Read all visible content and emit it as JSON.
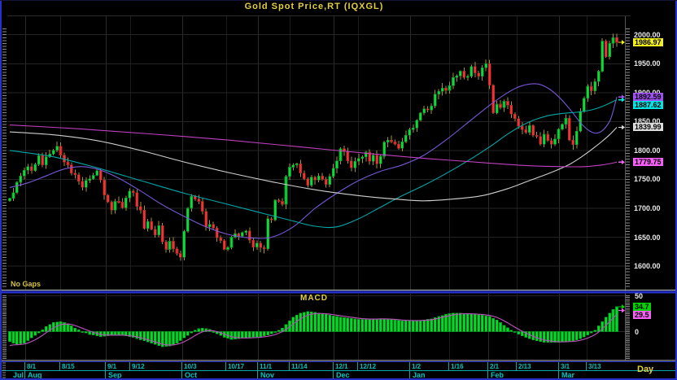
{
  "window": {
    "title": "Gold Spot Price,RT (IQXGL)",
    "period_label": "Day",
    "note": "No Gaps"
  },
  "colors": {
    "background": "#000000",
    "frame_blue": "#2531c8",
    "candle_up": "#0ddb39",
    "candle_down": "#ef3434",
    "wick": "#a59335",
    "axis_text": "#e8e8e8",
    "date_text": "#00c4c4",
    "title_text": "#e3cf3f",
    "macd_bar": "#00dc28",
    "macd_signal": "#b44fb4"
  },
  "chart_data": [
    {
      "type": "candlestick",
      "title": "Gold Spot Price,RT (IQXGL)",
      "note": "No Gaps",
      "ylabel": "",
      "ylim": [
        1560,
        2015
      ],
      "y_ticks": [
        2000,
        1950,
        1900,
        1850,
        1800,
        1750,
        1700,
        1650,
        1600
      ],
      "current_price": 1986.97,
      "closes": [
        1717,
        1727,
        1745,
        1756,
        1766,
        1772,
        1765,
        1776,
        1791,
        1775,
        1789,
        1794,
        1800,
        1807,
        1792,
        1780,
        1775,
        1761,
        1758,
        1747,
        1736,
        1748,
        1751,
        1757,
        1765,
        1749,
        1723,
        1711,
        1697,
        1712,
        1711,
        1701,
        1718,
        1730,
        1727,
        1703,
        1697,
        1665,
        1677,
        1664,
        1654,
        1670,
        1642,
        1629,
        1643,
        1630,
        1622,
        1615,
        1660,
        1700,
        1721,
        1716,
        1712,
        1695,
        1668,
        1672,
        1666,
        1649,
        1644,
        1629,
        1632,
        1650,
        1656,
        1652,
        1658,
        1661,
        1645,
        1633,
        1640,
        1632,
        1630,
        1682,
        1680,
        1714,
        1712,
        1707,
        1755,
        1771,
        1775,
        1777,
        1761,
        1751,
        1740,
        1754,
        1749,
        1756,
        1750,
        1741,
        1755,
        1769,
        1782,
        1803,
        1798,
        1782,
        1770,
        1781,
        1786,
        1789,
        1797,
        1781,
        1792,
        1777,
        1790,
        1814,
        1818,
        1815,
        1811,
        1804,
        1815,
        1826,
        1836,
        1839,
        1852,
        1865,
        1872,
        1870,
        1877,
        1897,
        1902,
        1908,
        1904,
        1912,
        1926,
        1929,
        1937,
        1926,
        1928,
        1945,
        1934,
        1928,
        1943,
        1950,
        1913,
        1865,
        1880,
        1874,
        1885,
        1878,
        1863,
        1855,
        1842,
        1836,
        1831,
        1843,
        1826,
        1824,
        1811,
        1828,
        1817,
        1811,
        1820,
        1837,
        1845,
        1856,
        1818,
        1810,
        1833,
        1868,
        1890,
        1911,
        1903,
        1919,
        1937,
        1989,
        1962,
        1985,
        1995,
        1986.97
      ],
      "moving_averages": [
        {
          "name": "ma-fast-purple",
          "color": "#7757d8",
          "current": 1892.59,
          "points": [
            [
              0,
              1736
            ],
            [
              5,
              1744
            ],
            [
              10,
              1756
            ],
            [
              15,
              1768
            ],
            [
              20,
              1772
            ],
            [
              25,
              1766
            ],
            [
              30,
              1752
            ],
            [
              36,
              1730
            ],
            [
              42,
              1706
            ],
            [
              48,
              1686
            ],
            [
              54,
              1668
            ],
            [
              60,
              1655
            ],
            [
              66,
              1649
            ],
            [
              72,
              1650
            ],
            [
              78,
              1668
            ],
            [
              84,
              1700
            ],
            [
              90,
              1726
            ],
            [
              96,
              1748
            ],
            [
              102,
              1764
            ],
            [
              108,
              1775
            ],
            [
              114,
              1792
            ],
            [
              120,
              1818
            ],
            [
              126,
              1848
            ],
            [
              132,
              1878
            ],
            [
              137,
              1900
            ],
            [
              141,
              1912
            ],
            [
              145,
              1915
            ],
            [
              148,
              1908
            ],
            [
              151,
              1893
            ],
            [
              154,
              1872
            ],
            [
              157,
              1848
            ],
            [
              159,
              1836
            ],
            [
              161,
              1830
            ],
            [
              163,
              1834
            ],
            [
              165,
              1850
            ],
            [
              166,
              1868
            ],
            [
              167,
              1892.59
            ]
          ]
        },
        {
          "name": "ma-mid-cyan",
          "color": "#00a8a8",
          "current": 1887.62,
          "points": [
            [
              0,
              1800
            ],
            [
              12,
              1789
            ],
            [
              24,
              1770
            ],
            [
              36,
              1748
            ],
            [
              48,
              1726
            ],
            [
              58,
              1710
            ],
            [
              68,
              1694
            ],
            [
              78,
              1678
            ],
            [
              84,
              1669
            ],
            [
              90,
              1668
            ],
            [
              96,
              1682
            ],
            [
              102,
              1702
            ],
            [
              108,
              1722
            ],
            [
              114,
              1740
            ],
            [
              120,
              1760
            ],
            [
              126,
              1782
            ],
            [
              132,
              1806
            ],
            [
              136,
              1824
            ],
            [
              140,
              1840
            ],
            [
              144,
              1852
            ],
            [
              148,
              1860
            ],
            [
              152,
              1864
            ],
            [
              156,
              1866
            ],
            [
              160,
              1870
            ],
            [
              163,
              1876
            ],
            [
              167,
              1887.62
            ]
          ]
        },
        {
          "name": "ma-slow-white",
          "color": "#cfcfcf",
          "current": 1839.99,
          "points": [
            [
              0,
              1832
            ],
            [
              12,
              1827
            ],
            [
              24,
              1817
            ],
            [
              36,
              1800
            ],
            [
              48,
              1780
            ],
            [
              60,
              1762
            ],
            [
              72,
              1746
            ],
            [
              84,
              1732
            ],
            [
              96,
              1722
            ],
            [
              106,
              1716
            ],
            [
              114,
              1713
            ],
            [
              122,
              1716
            ],
            [
              130,
              1722
            ],
            [
              137,
              1734
            ],
            [
              143,
              1748
            ],
            [
              149,
              1762
            ],
            [
              154,
              1776
            ],
            [
              158,
              1792
            ],
            [
              161,
              1806
            ],
            [
              163,
              1816
            ],
            [
              165,
              1827
            ],
            [
              167,
              1839.99
            ]
          ]
        },
        {
          "name": "ma-long-magenta",
          "color": "#c040c0",
          "current": 1779.75,
          "points": [
            [
              0,
              1844
            ],
            [
              20,
              1837
            ],
            [
              40,
              1828
            ],
            [
              60,
              1818
            ],
            [
              80,
              1806
            ],
            [
              100,
              1794
            ],
            [
              115,
              1786
            ],
            [
              130,
              1779
            ],
            [
              142,
              1774
            ],
            [
              152,
              1772
            ],
            [
              158,
              1772
            ],
            [
              163,
              1775
            ],
            [
              167,
              1779.75
            ]
          ]
        }
      ],
      "markers": [
        {
          "label": "1986.97",
          "value": 1986.97,
          "color": "#f2ef1d"
        },
        {
          "label": "1892.59",
          "value": 1892.59,
          "color": "#a050f0"
        },
        {
          "label": "1887.62",
          "value": 1887.62,
          "color": "#00e5e5"
        },
        {
          "label": "1839.99",
          "value": 1839.99,
          "color": "#dcdcdc"
        },
        {
          "label": "1779.75",
          "value": 1779.75,
          "color": "#f85ef8"
        }
      ],
      "x_ticks": [
        {
          "label": "8/1",
          "i": 4.3
        },
        {
          "label": "8/15",
          "i": 13.9
        },
        {
          "label": "9/1",
          "i": 26.4
        },
        {
          "label": "9/12",
          "i": 33.1
        },
        {
          "label": "10/3",
          "i": 47.5
        },
        {
          "label": "10/17",
          "i": 59.5
        },
        {
          "label": "11/1",
          "i": 68.3
        },
        {
          "label": "11/14",
          "i": 77.0
        },
        {
          "label": "12/1",
          "i": 89.1
        },
        {
          "label": "12/12",
          "i": 95.8
        },
        {
          "label": "1/2",
          "i": 110.1
        },
        {
          "label": "1/16",
          "i": 120.9
        },
        {
          "label": "2/1",
          "i": 131.6
        },
        {
          "label": "2/13",
          "i": 139.5
        },
        {
          "label": "3/1",
          "i": 151.1
        },
        {
          "label": "3/13",
          "i": 158.7
        }
      ],
      "x_months": [
        {
          "label": "Jul",
          "i": 0.2,
          "sep": false
        },
        {
          "label": "Aug",
          "i": 4.3,
          "sep": true
        },
        {
          "label": "Sep",
          "i": 26.4,
          "sep": true
        },
        {
          "label": "Oct",
          "i": 47.5,
          "sep": true
        },
        {
          "label": "Nov",
          "i": 68.3,
          "sep": true
        },
        {
          "label": "Dec",
          "i": 89.1,
          "sep": true
        },
        {
          "label": "Jan",
          "i": 110.1,
          "sep": true
        },
        {
          "label": "Feb",
          "i": 131.6,
          "sep": true
        },
        {
          "label": "Mar",
          "i": 151.1,
          "sep": true
        }
      ]
    },
    {
      "type": "bar",
      "title": "MACD",
      "y_ticks": [
        50,
        0
      ],
      "ylim": [
        -40,
        53
      ],
      "macd_current": 34.7,
      "signal_current": 29.5,
      "signal_start": -22,
      "markers": [
        {
          "label": "34.7",
          "value": 34.7,
          "color": "#00d400"
        },
        {
          "label": "29.5",
          "value": 29.5,
          "color": "#f85ef8"
        }
      ],
      "histogram_anchors": [
        [
          0,
          -14
        ],
        [
          2,
          -18
        ],
        [
          4,
          -16
        ],
        [
          6,
          -9
        ],
        [
          8,
          -2
        ],
        [
          10,
          7
        ],
        [
          12,
          13
        ],
        [
          14,
          14
        ],
        [
          16,
          11
        ],
        [
          18,
          5
        ],
        [
          20,
          0
        ],
        [
          22,
          -4
        ],
        [
          25,
          -7
        ],
        [
          28,
          -5
        ],
        [
          31,
          -5
        ],
        [
          34,
          -8
        ],
        [
          37,
          -13
        ],
        [
          40,
          -18
        ],
        [
          42,
          -21
        ],
        [
          44,
          -20
        ],
        [
          46,
          -16
        ],
        [
          48,
          -9
        ],
        [
          50,
          -2
        ],
        [
          51,
          2
        ],
        [
          52,
          4
        ],
        [
          53,
          5
        ],
        [
          55,
          3
        ],
        [
          56,
          0
        ],
        [
          57,
          -3
        ],
        [
          59,
          -8
        ],
        [
          61,
          -11
        ],
        [
          63,
          -10
        ],
        [
          65,
          -9
        ],
        [
          67,
          -8
        ],
        [
          69,
          -7
        ],
        [
          71,
          -5
        ],
        [
          73,
          -1
        ],
        [
          75,
          5
        ],
        [
          76,
          10
        ],
        [
          78,
          20
        ],
        [
          80,
          26
        ],
        [
          82,
          28
        ],
        [
          84,
          27
        ],
        [
          86,
          25
        ],
        [
          88,
          23
        ],
        [
          90,
          21
        ],
        [
          93,
          19
        ],
        [
          96,
          17
        ],
        [
          99,
          17
        ],
        [
          102,
          18
        ],
        [
          105,
          17
        ],
        [
          108,
          15
        ],
        [
          111,
          15
        ],
        [
          114,
          16
        ],
        [
          116,
          18
        ],
        [
          118,
          21
        ],
        [
          120,
          24
        ],
        [
          122,
          26
        ],
        [
          124,
          26
        ],
        [
          126,
          25
        ],
        [
          128,
          24
        ],
        [
          130,
          23
        ],
        [
          132,
          21
        ],
        [
          134,
          16
        ],
        [
          136,
          9
        ],
        [
          138,
          2
        ],
        [
          139,
          -1
        ],
        [
          141,
          -6
        ],
        [
          143,
          -10
        ],
        [
          145,
          -13
        ],
        [
          147,
          -15
        ],
        [
          149,
          -15
        ],
        [
          151,
          -15
        ],
        [
          153,
          -14
        ],
        [
          155,
          -13
        ],
        [
          157,
          -10
        ],
        [
          159,
          -5
        ],
        [
          160,
          -2
        ],
        [
          161,
          2
        ],
        [
          162,
          8
        ],
        [
          163,
          14
        ],
        [
          164,
          20
        ],
        [
          165,
          26
        ],
        [
          166,
          31
        ],
        [
          167,
          34.7
        ]
      ]
    }
  ]
}
